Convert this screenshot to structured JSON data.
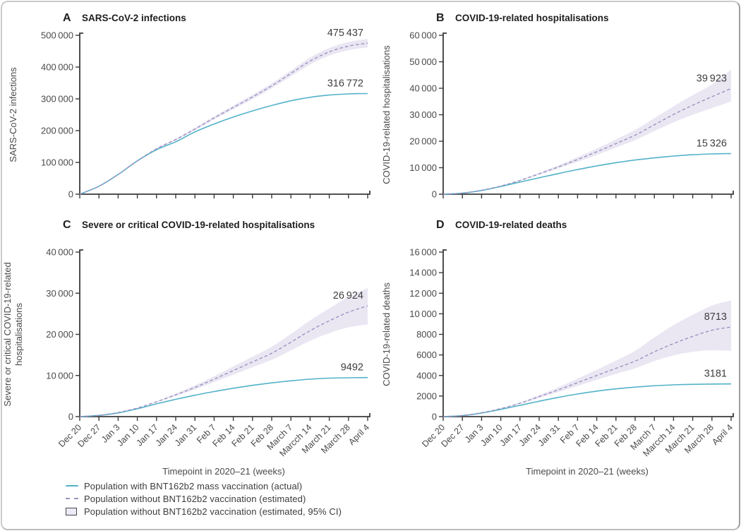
{
  "figure": {
    "xlabel": "Timepoint in 2020–21 (weeks)",
    "legend": [
      {
        "swatch": "solid-line",
        "label": "Population with BNT162b2 mass vaccination (actual)"
      },
      {
        "swatch": "dashed-line",
        "label": "Population without BNT162b2 vaccination (estimated)"
      },
      {
        "swatch": "ci-band",
        "label": "Population without BNT162b2 vaccination (estimated, 95% CI)"
      }
    ],
    "colors": {
      "actual": "#53b2c9",
      "estimated": "#9e90c0",
      "ci_band": "#e8e4f2",
      "axis": "#3a3a3a",
      "tick_text": "#4a4a4a",
      "title_text": "#1e1e1e",
      "value_text": "#3f3f3f"
    }
  },
  "chart_data": [
    {
      "letter": "A",
      "title": "SARS-CoV-2 infections",
      "type": "line",
      "ylabel_lines": [
        "SARS-CoV-2 infections"
      ],
      "ylim": [
        0,
        500000
      ],
      "ytick_step": 100000,
      "grid": false,
      "legend_position": "bottom-left-of-figure",
      "categories": [
        "Dec 20",
        "Dec 27",
        "Jan 3",
        "Jan 10",
        "Jan 17",
        "Jan 24",
        "Jan 31",
        "Feb 7",
        "Feb 14",
        "Feb 21",
        "Feb 28",
        "March 7",
        "Marcch 14",
        "March 21",
        "March 28",
        "April 4"
      ],
      "series": [
        {
          "name": "Population with BNT162b2 mass vaccination (actual)",
          "values": [
            0,
            25000,
            62000,
            105000,
            140000,
            165000,
            196000,
            221000,
            243000,
            262000,
            279000,
            294000,
            305000,
            312000,
            315500,
            316772
          ],
          "end_label": "316 772"
        },
        {
          "name": "Population without BNT162b2 vaccination (estimated)",
          "values": [
            0,
            25000,
            62000,
            105000,
            143000,
            172000,
            205000,
            240000,
            273000,
            306000,
            341000,
            380000,
            419000,
            448000,
            466000,
            475437
          ],
          "end_label": "475 437",
          "ci_lower": [
            0,
            25000,
            62000,
            105000,
            141000,
            169000,
            201000,
            235000,
            267000,
            299000,
            333000,
            371000,
            408000,
            436000,
            453000,
            462000
          ],
          "ci_upper": [
            0,
            25000,
            62000,
            105000,
            145000,
            175000,
            209000,
            245000,
            279000,
            313000,
            349000,
            389000,
            430000,
            460000,
            479000,
            489000
          ]
        }
      ]
    },
    {
      "letter": "B",
      "title": "COVID-19-related hospitalisations",
      "type": "line",
      "ylabel_lines": [
        "COVID-19-related hospitalisations"
      ],
      "ylim": [
        0,
        60000
      ],
      "ytick_step": 10000,
      "grid": false,
      "categories": [
        "Dec 20",
        "Dec 27",
        "Jan 3",
        "Jan 10",
        "Jan 17",
        "Jan 24",
        "Jan 31",
        "Feb 7",
        "Feb 14",
        "Feb 21",
        "Feb 28",
        "March 7",
        "Marcch 14",
        "March 21",
        "March 28",
        "April 4"
      ],
      "series": [
        {
          "name": "Population with BNT162b2 mass vaccination (actual)",
          "values": [
            0,
            400,
            1400,
            2900,
            4600,
            6200,
            7800,
            9300,
            10700,
            11900,
            12900,
            13700,
            14400,
            14900,
            15200,
            15326
          ],
          "end_label": "15 326"
        },
        {
          "name": "Population without BNT162b2 vaccination (estimated)",
          "values": [
            0,
            400,
            1500,
            3100,
            5200,
            7700,
            10300,
            13100,
            16000,
            19100,
            22300,
            26200,
            30100,
            33600,
            36800,
            39923
          ],
          "end_label": "39 923",
          "ci_lower": [
            0,
            400,
            1500,
            3000,
            5000,
            7300,
            9700,
            12200,
            14800,
            17600,
            20400,
            23800,
            27100,
            30000,
            32500,
            35000
          ],
          "ci_upper": [
            0,
            400,
            1500,
            3200,
            5400,
            8100,
            10900,
            14000,
            17200,
            20700,
            24300,
            28700,
            33200,
            37400,
            41500,
            47000
          ]
        }
      ]
    },
    {
      "letter": "C",
      "title": "Severe or critical COVID-19-related hospitalisations",
      "type": "line",
      "ylabel_lines": [
        "Severe or critical COVID-19-related",
        "hospitalisations"
      ],
      "ylim": [
        0,
        40000
      ],
      "ytick_step": 10000,
      "grid": false,
      "categories": [
        "Dec 20",
        "Dec 27",
        "Jan 3",
        "Jan 10",
        "Jan 17",
        "Jan 24",
        "Jan 31",
        "Feb 7",
        "Feb 14",
        "Feb 21",
        "Feb 28",
        "March 7",
        "Marcch 14",
        "March 21",
        "March 28",
        "April 4"
      ],
      "series": [
        {
          "name": "Population with BNT162b2 mass vaccination (actual)",
          "values": [
            0,
            300,
            900,
            1900,
            3100,
            4200,
            5200,
            6100,
            6900,
            7600,
            8200,
            8700,
            9100,
            9350,
            9450,
            9492
          ],
          "end_label": "9492"
        },
        {
          "name": "Population without BNT162b2 vaccination (estimated)",
          "values": [
            0,
            300,
            1000,
            2100,
            3600,
            5300,
            7100,
            9100,
            11200,
            13300,
            15400,
            18100,
            20900,
            23300,
            25400,
            26924
          ],
          "end_label": "26 924",
          "ci_lower": [
            0,
            300,
            1000,
            2050,
            3450,
            5000,
            6600,
            8400,
            10200,
            12000,
            13800,
            16100,
            18400,
            20300,
            21700,
            22400
          ],
          "ci_upper": [
            0,
            300,
            1000,
            2150,
            3750,
            5600,
            7600,
            9800,
            12200,
            14600,
            17000,
            20100,
            23400,
            26300,
            29100,
            31300
          ]
        }
      ]
    },
    {
      "letter": "D",
      "title": "COVID-19-related deaths",
      "type": "line",
      "ylabel_lines": [
        "COVID-19-related deaths"
      ],
      "ylim": [
        0,
        16000
      ],
      "ytick_step": 2000,
      "grid": false,
      "categories": [
        "Dec 20",
        "Dec 27",
        "Jan 3",
        "Jan 10",
        "Jan 17",
        "Jan 24",
        "Jan 31",
        "Feb 7",
        "Feb 14",
        "Feb 21",
        "Feb 28",
        "March 7",
        "Marcch 14",
        "March 21",
        "March 28",
        "April 4"
      ],
      "series": [
        {
          "name": "Population with BNT162b2 mass vaccination (actual)",
          "values": [
            0,
            100,
            350,
            700,
            1100,
            1500,
            1870,
            2200,
            2480,
            2700,
            2870,
            3000,
            3090,
            3140,
            3165,
            3181
          ],
          "end_label": "3181"
        },
        {
          "name": "Population without BNT162b2 vaccination (estimated)",
          "values": [
            0,
            100,
            380,
            780,
            1300,
            1950,
            2600,
            3300,
            4000,
            4700,
            5400,
            6300,
            7100,
            7800,
            8400,
            8713
          ],
          "end_label": "8713",
          "ci_lower": [
            0,
            100,
            380,
            750,
            1220,
            1800,
            2380,
            2980,
            3580,
            4150,
            4700,
            5400,
            5950,
            6300,
            6450,
            6400
          ],
          "ci_upper": [
            0,
            100,
            390,
            810,
            1380,
            2100,
            2850,
            3700,
            4550,
            5450,
            6400,
            7700,
            8900,
            9900,
            10800,
            11300
          ]
        }
      ]
    }
  ]
}
